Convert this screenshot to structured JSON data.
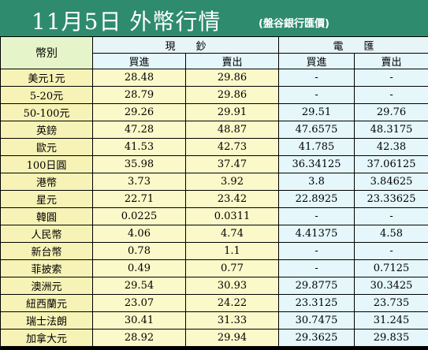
{
  "title": "11月5日 外幣行情",
  "subtitle": "(盤谷銀行匯價)",
  "headers": {
    "currency": "幣別",
    "cash": "現　　鈔",
    "transfer": "電　　匯",
    "buy": "買進",
    "sell": "賣出"
  },
  "rows": [
    {
      "name": "美元1元",
      "cash_buy": "28.48",
      "cash_sell": "29.86",
      "tt_buy": "-",
      "tt_sell": "-"
    },
    {
      "name": "5-20元",
      "cash_buy": "28.79",
      "cash_sell": "29.86",
      "tt_buy": "-",
      "tt_sell": "-"
    },
    {
      "name": "50-100元",
      "cash_buy": "29.26",
      "cash_sell": "29.91",
      "tt_buy": "29.51",
      "tt_sell": "29.76"
    },
    {
      "name": "英鎊",
      "cash_buy": "47.28",
      "cash_sell": "48.87",
      "tt_buy": "47.6575",
      "tt_sell": "48.3175"
    },
    {
      "name": "歐元",
      "cash_buy": "41.53",
      "cash_sell": "42.73",
      "tt_buy": "41.785",
      "tt_sell": "42.38"
    },
    {
      "name": "100日圓",
      "cash_buy": "35.98",
      "cash_sell": "37.47",
      "tt_buy": "36.34125",
      "tt_sell": "37.06125"
    },
    {
      "name": "港幣",
      "cash_buy": "3.73",
      "cash_sell": "3.92",
      "tt_buy": "3.8",
      "tt_sell": "3.84625"
    },
    {
      "name": "星元",
      "cash_buy": "22.71",
      "cash_sell": "23.42",
      "tt_buy": "22.8925",
      "tt_sell": "23.33625"
    },
    {
      "name": "韓圓",
      "cash_buy": "0.0225",
      "cash_sell": "0.0311",
      "tt_buy": "-",
      "tt_sell": "-"
    },
    {
      "name": "人民幣",
      "cash_buy": "4.06",
      "cash_sell": "4.74",
      "tt_buy": "4.41375",
      "tt_sell": "4.58"
    },
    {
      "name": "新台幣",
      "cash_buy": "0.78",
      "cash_sell": "1.1",
      "tt_buy": "-",
      "tt_sell": "-"
    },
    {
      "name": "菲披索",
      "cash_buy": "0.49",
      "cash_sell": "0.77",
      "tt_buy": "-",
      "tt_sell": "0.7125"
    },
    {
      "name": "澳洲元",
      "cash_buy": "29.54",
      "cash_sell": "30.93",
      "tt_buy": "29.8775",
      "tt_sell": "30.3425"
    },
    {
      "name": "紐西蘭元",
      "cash_buy": "23.07",
      "cash_sell": "24.22",
      "tt_buy": "23.3125",
      "tt_sell": "23.735"
    },
    {
      "name": "瑞士法朗",
      "cash_buy": "30.41",
      "cash_sell": "31.33",
      "tt_buy": "30.7475",
      "tt_sell": "31.245"
    },
    {
      "name": "加拿大元",
      "cash_buy": "28.92",
      "cash_sell": "29.94",
      "tt_buy": "29.3625",
      "tt_sell": "29.835"
    }
  ]
}
